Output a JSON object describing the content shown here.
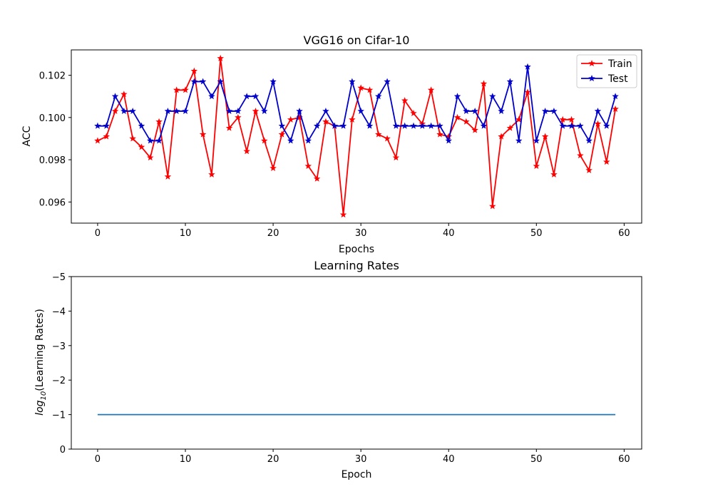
{
  "chart_data": [
    {
      "type": "line",
      "title": "VGG16 on Cifar-10",
      "xlabel": "Epochs",
      "ylabel": "ACC",
      "xlim": [
        -3,
        62
      ],
      "ylim": [
        0.095,
        0.1032
      ],
      "xticks": [
        0,
        10,
        20,
        30,
        40,
        50,
        60
      ],
      "yticks": [
        0.096,
        0.098,
        0.1,
        0.102
      ],
      "ytick_labels": [
        "0.096",
        "0.098",
        "0.100",
        "0.102"
      ],
      "legend_position": "top-right",
      "grid": false,
      "x": [
        0,
        1,
        2,
        3,
        4,
        5,
        6,
        7,
        8,
        9,
        10,
        11,
        12,
        13,
        14,
        15,
        16,
        17,
        18,
        19,
        20,
        21,
        22,
        23,
        24,
        25,
        26,
        27,
        28,
        29,
        30,
        31,
        32,
        33,
        34,
        35,
        36,
        37,
        38,
        39,
        40,
        41,
        42,
        43,
        44,
        45,
        46,
        47,
        48,
        49,
        50,
        51,
        52,
        53,
        54,
        55,
        56,
        57,
        58,
        59
      ],
      "series": [
        {
          "name": "Train",
          "color": "#ff0000",
          "marker": "star",
          "values": [
            0.0989,
            0.0991,
            0.1003,
            0.1011,
            0.099,
            0.0986,
            0.0981,
            0.0998,
            0.0972,
            0.1013,
            0.1013,
            0.1022,
            0.0992,
            0.0973,
            0.1028,
            0.0995,
            0.1,
            0.0984,
            0.1003,
            0.0989,
            0.0976,
            0.0992,
            0.0999,
            0.1,
            0.0977,
            0.0971,
            0.0998,
            0.0996,
            0.0954,
            0.0999,
            0.1014,
            0.1013,
            0.0992,
            0.099,
            0.0981,
            0.1008,
            0.1002,
            0.0997,
            0.1013,
            0.0992,
            0.0991,
            0.1,
            0.0998,
            0.0994,
            0.1016,
            0.0958,
            0.0991,
            0.0995,
            0.0999,
            0.1012,
            0.0977,
            0.0991,
            0.0973,
            0.0999,
            0.0999,
            0.0982,
            0.0975,
            0.0997,
            0.0979,
            0.1004
          ]
        },
        {
          "name": "Test",
          "color": "#0000cc",
          "marker": "star",
          "values": [
            0.0996,
            0.0996,
            0.101,
            0.1003,
            0.1003,
            0.0996,
            0.0989,
            0.0989,
            0.1003,
            0.1003,
            0.1003,
            0.1017,
            0.1017,
            0.101,
            0.1017,
            0.1003,
            0.1003,
            0.101,
            0.101,
            0.1003,
            0.1017,
            0.0996,
            0.0989,
            0.1003,
            0.0989,
            0.0996,
            0.1003,
            0.0996,
            0.0996,
            0.1017,
            0.1003,
            0.0996,
            0.101,
            0.1017,
            0.0996,
            0.0996,
            0.0996,
            0.0996,
            0.0996,
            0.0996,
            0.0989,
            0.101,
            0.1003,
            0.1003,
            0.0996,
            0.101,
            0.1003,
            0.1017,
            0.0989,
            0.1024,
            0.0989,
            0.1003,
            0.1003,
            0.0996,
            0.0996,
            0.0996,
            0.0989,
            0.1003,
            0.0996,
            0.101
          ]
        }
      ]
    },
    {
      "type": "line",
      "title": "Learning Rates",
      "xlabel": "Epoch",
      "ylabel_prefix": "log",
      "ylabel_subscript": "10",
      "ylabel_suffix": "(Learning Rates)",
      "xlim": [
        -3,
        62
      ],
      "ylim": [
        0,
        -5
      ],
      "xticks": [
        0,
        10,
        20,
        30,
        40,
        50,
        60
      ],
      "yticks": [
        0,
        -1,
        -2,
        -3,
        -4,
        -5
      ],
      "ytick_labels": [
        "0",
        "−1",
        "−2",
        "−3",
        "−4",
        "−5"
      ],
      "grid": false,
      "x_range": [
        0,
        59
      ],
      "series": [
        {
          "color": "#1f77b4",
          "values": [
            -1,
            -1
          ]
        }
      ]
    }
  ]
}
